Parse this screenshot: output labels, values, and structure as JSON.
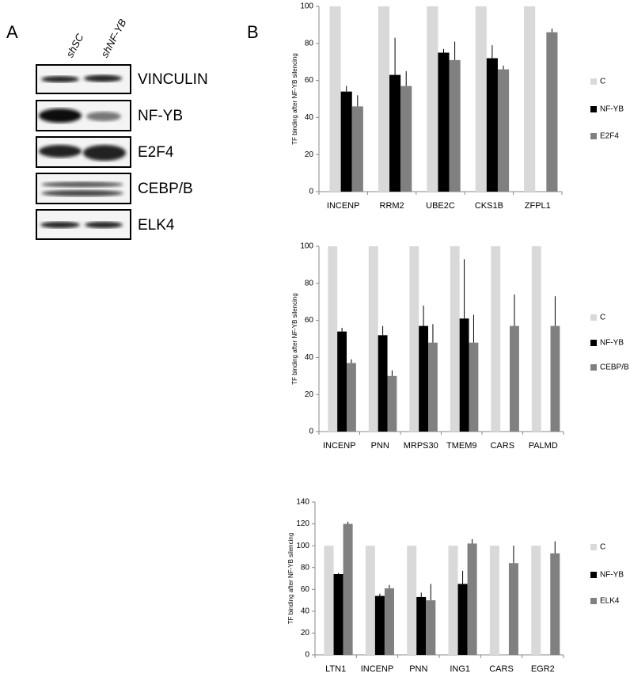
{
  "panels": {
    "a": "A",
    "b": "B"
  },
  "blot": {
    "lanes": [
      "shSC",
      "shNF-YB"
    ],
    "labels": [
      "VINCULIN",
      "NF-YB",
      "E2F4",
      "CEBP/B",
      "ELK4"
    ]
  },
  "chart_data": [
    {
      "type": "bar",
      "y_label": "TF binding after NF-YB silencing",
      "categories": [
        "INCENP",
        "RRM2",
        "UBE2C",
        "CKS1B",
        "ZFPL1"
      ],
      "series": [
        {
          "name": "C",
          "color": "#d9d9d9",
          "values": [
            100,
            100,
            100,
            100,
            100
          ]
        },
        {
          "name": "NF-YB",
          "color": "#000000",
          "values": [
            54,
            63,
            75,
            72,
            null
          ],
          "errors": [
            3,
            20,
            2,
            7,
            null
          ]
        },
        {
          "name": "E2F4",
          "color": "#808080",
          "values": [
            46,
            57,
            71,
            66,
            86
          ],
          "errors": [
            6,
            8,
            10,
            2,
            2
          ]
        }
      ],
      "ylim": [
        0,
        100
      ],
      "yticks": [
        0,
        20,
        40,
        60,
        80,
        100
      ]
    },
    {
      "type": "bar",
      "y_label": "TF binding after NF-YB silencing",
      "categories": [
        "INCENP",
        "PNN",
        "MRPS30",
        "TMEM9",
        "CARS",
        "PALMD"
      ],
      "series": [
        {
          "name": "C",
          "color": "#d9d9d9",
          "values": [
            100,
            100,
            100,
            100,
            100,
            100
          ]
        },
        {
          "name": "NF-YB",
          "color": "#000000",
          "values": [
            54,
            52,
            57,
            61,
            null,
            null
          ],
          "errors": [
            2,
            5,
            11,
            32,
            null,
            null
          ]
        },
        {
          "name": "CEBP/B",
          "color": "#808080",
          "values": [
            37,
            30,
            48,
            48,
            57,
            57
          ],
          "errors": [
            2,
            3,
            10,
            15,
            17,
            16
          ]
        }
      ],
      "ylim": [
        0,
        100
      ],
      "yticks": [
        0,
        20,
        40,
        60,
        80,
        100
      ]
    },
    {
      "type": "bar",
      "y_label": "TF binding after NF-YB silencing",
      "categories": [
        "LTN1",
        "INCENP",
        "PNN",
        "ING1",
        "CARS",
        "EGR2"
      ],
      "series": [
        {
          "name": "C",
          "color": "#d9d9d9",
          "values": [
            100,
            100,
            100,
            100,
            100,
            100
          ]
        },
        {
          "name": "NF-YB",
          "color": "#000000",
          "values": [
            74,
            54,
            53,
            65,
            null,
            null
          ],
          "errors": [
            1,
            2,
            4,
            12,
            null,
            null
          ]
        },
        {
          "name": "ELK4",
          "color": "#808080",
          "values": [
            120,
            61,
            50,
            102,
            84,
            93
          ],
          "errors": [
            2,
            3,
            15,
            4,
            16,
            11
          ]
        }
      ],
      "ylim": [
        0,
        140
      ],
      "yticks": [
        0,
        20,
        40,
        60,
        80,
        100,
        120,
        140
      ]
    }
  ]
}
